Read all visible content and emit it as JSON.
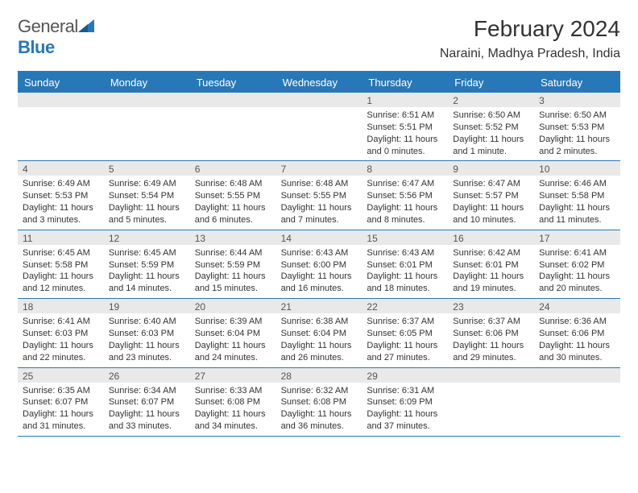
{
  "logo": {
    "text1": "General",
    "text2": "Blue"
  },
  "title": "February 2024",
  "location": "Naraini, Madhya Pradesh, India",
  "header_bg": "#2778b8",
  "daynum_bg": "#e9e9e9",
  "text_color": "#333333",
  "dayNames": [
    "Sunday",
    "Monday",
    "Tuesday",
    "Wednesday",
    "Thursday",
    "Friday",
    "Saturday"
  ],
  "weeks": [
    [
      null,
      null,
      null,
      null,
      {
        "n": "1",
        "sr": "Sunrise: 6:51 AM",
        "ss": "Sunset: 5:51 PM",
        "d1": "Daylight: 11 hours",
        "d2": "and 0 minutes."
      },
      {
        "n": "2",
        "sr": "Sunrise: 6:50 AM",
        "ss": "Sunset: 5:52 PM",
        "d1": "Daylight: 11 hours",
        "d2": "and 1 minute."
      },
      {
        "n": "3",
        "sr": "Sunrise: 6:50 AM",
        "ss": "Sunset: 5:53 PM",
        "d1": "Daylight: 11 hours",
        "d2": "and 2 minutes."
      }
    ],
    [
      {
        "n": "4",
        "sr": "Sunrise: 6:49 AM",
        "ss": "Sunset: 5:53 PM",
        "d1": "Daylight: 11 hours",
        "d2": "and 3 minutes."
      },
      {
        "n": "5",
        "sr": "Sunrise: 6:49 AM",
        "ss": "Sunset: 5:54 PM",
        "d1": "Daylight: 11 hours",
        "d2": "and 5 minutes."
      },
      {
        "n": "6",
        "sr": "Sunrise: 6:48 AM",
        "ss": "Sunset: 5:55 PM",
        "d1": "Daylight: 11 hours",
        "d2": "and 6 minutes."
      },
      {
        "n": "7",
        "sr": "Sunrise: 6:48 AM",
        "ss": "Sunset: 5:55 PM",
        "d1": "Daylight: 11 hours",
        "d2": "and 7 minutes."
      },
      {
        "n": "8",
        "sr": "Sunrise: 6:47 AM",
        "ss": "Sunset: 5:56 PM",
        "d1": "Daylight: 11 hours",
        "d2": "and 8 minutes."
      },
      {
        "n": "9",
        "sr": "Sunrise: 6:47 AM",
        "ss": "Sunset: 5:57 PM",
        "d1": "Daylight: 11 hours",
        "d2": "and 10 minutes."
      },
      {
        "n": "10",
        "sr": "Sunrise: 6:46 AM",
        "ss": "Sunset: 5:58 PM",
        "d1": "Daylight: 11 hours",
        "d2": "and 11 minutes."
      }
    ],
    [
      {
        "n": "11",
        "sr": "Sunrise: 6:45 AM",
        "ss": "Sunset: 5:58 PM",
        "d1": "Daylight: 11 hours",
        "d2": "and 12 minutes."
      },
      {
        "n": "12",
        "sr": "Sunrise: 6:45 AM",
        "ss": "Sunset: 5:59 PM",
        "d1": "Daylight: 11 hours",
        "d2": "and 14 minutes."
      },
      {
        "n": "13",
        "sr": "Sunrise: 6:44 AM",
        "ss": "Sunset: 5:59 PM",
        "d1": "Daylight: 11 hours",
        "d2": "and 15 minutes."
      },
      {
        "n": "14",
        "sr": "Sunrise: 6:43 AM",
        "ss": "Sunset: 6:00 PM",
        "d1": "Daylight: 11 hours",
        "d2": "and 16 minutes."
      },
      {
        "n": "15",
        "sr": "Sunrise: 6:43 AM",
        "ss": "Sunset: 6:01 PM",
        "d1": "Daylight: 11 hours",
        "d2": "and 18 minutes."
      },
      {
        "n": "16",
        "sr": "Sunrise: 6:42 AM",
        "ss": "Sunset: 6:01 PM",
        "d1": "Daylight: 11 hours",
        "d2": "and 19 minutes."
      },
      {
        "n": "17",
        "sr": "Sunrise: 6:41 AM",
        "ss": "Sunset: 6:02 PM",
        "d1": "Daylight: 11 hours",
        "d2": "and 20 minutes."
      }
    ],
    [
      {
        "n": "18",
        "sr": "Sunrise: 6:41 AM",
        "ss": "Sunset: 6:03 PM",
        "d1": "Daylight: 11 hours",
        "d2": "and 22 minutes."
      },
      {
        "n": "19",
        "sr": "Sunrise: 6:40 AM",
        "ss": "Sunset: 6:03 PM",
        "d1": "Daylight: 11 hours",
        "d2": "and 23 minutes."
      },
      {
        "n": "20",
        "sr": "Sunrise: 6:39 AM",
        "ss": "Sunset: 6:04 PM",
        "d1": "Daylight: 11 hours",
        "d2": "and 24 minutes."
      },
      {
        "n": "21",
        "sr": "Sunrise: 6:38 AM",
        "ss": "Sunset: 6:04 PM",
        "d1": "Daylight: 11 hours",
        "d2": "and 26 minutes."
      },
      {
        "n": "22",
        "sr": "Sunrise: 6:37 AM",
        "ss": "Sunset: 6:05 PM",
        "d1": "Daylight: 11 hours",
        "d2": "and 27 minutes."
      },
      {
        "n": "23",
        "sr": "Sunrise: 6:37 AM",
        "ss": "Sunset: 6:06 PM",
        "d1": "Daylight: 11 hours",
        "d2": "and 29 minutes."
      },
      {
        "n": "24",
        "sr": "Sunrise: 6:36 AM",
        "ss": "Sunset: 6:06 PM",
        "d1": "Daylight: 11 hours",
        "d2": "and 30 minutes."
      }
    ],
    [
      {
        "n": "25",
        "sr": "Sunrise: 6:35 AM",
        "ss": "Sunset: 6:07 PM",
        "d1": "Daylight: 11 hours",
        "d2": "and 31 minutes."
      },
      {
        "n": "26",
        "sr": "Sunrise: 6:34 AM",
        "ss": "Sunset: 6:07 PM",
        "d1": "Daylight: 11 hours",
        "d2": "and 33 minutes."
      },
      {
        "n": "27",
        "sr": "Sunrise: 6:33 AM",
        "ss": "Sunset: 6:08 PM",
        "d1": "Daylight: 11 hours",
        "d2": "and 34 minutes."
      },
      {
        "n": "28",
        "sr": "Sunrise: 6:32 AM",
        "ss": "Sunset: 6:08 PM",
        "d1": "Daylight: 11 hours",
        "d2": "and 36 minutes."
      },
      {
        "n": "29",
        "sr": "Sunrise: 6:31 AM",
        "ss": "Sunset: 6:09 PM",
        "d1": "Daylight: 11 hours",
        "d2": "and 37 minutes."
      },
      null,
      null
    ]
  ]
}
